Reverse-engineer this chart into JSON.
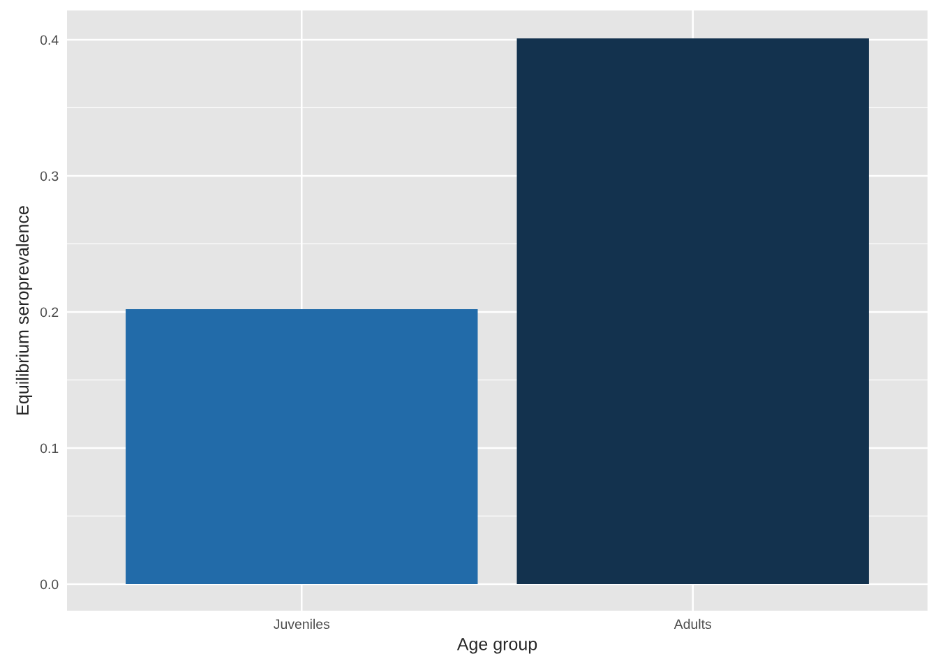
{
  "chart_data": {
    "type": "bar",
    "xlabel": "Age group",
    "ylabel": "Equilibrium seroprevalence",
    "categories": [
      "Juveniles",
      "Adults"
    ],
    "values": [
      0.202,
      0.401
    ],
    "colors": [
      "#226ba9",
      "#13324e"
    ],
    "ylim": [
      -0.0195,
      0.4215
    ],
    "yticks": [
      {
        "value": 0,
        "label": "0.0"
      },
      0.1,
      0.2,
      0.3,
      0.4
    ],
    "grid": true
  }
}
